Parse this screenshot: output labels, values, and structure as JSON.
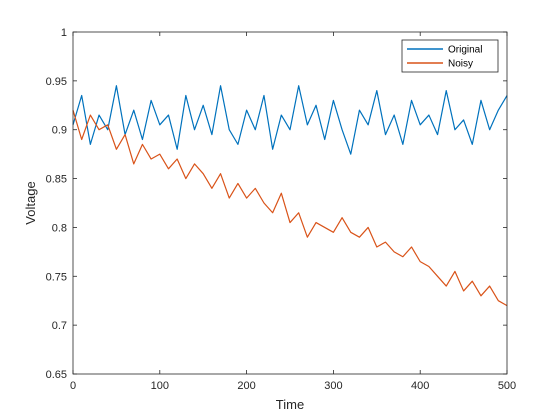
{
  "chart_data": {
    "type": "line",
    "title": "",
    "xlabel": "Time",
    "ylabel": "Voltage",
    "xlim": [
      0,
      500
    ],
    "ylim": [
      0.65,
      1.0
    ],
    "x_ticks": [
      0,
      100,
      200,
      300,
      400,
      500
    ],
    "y_ticks": [
      0.65,
      0.7,
      0.75,
      0.8,
      0.85,
      0.9,
      0.95,
      1
    ],
    "x_tick_labels": [
      "0",
      "100",
      "200",
      "300",
      "400",
      "500"
    ],
    "y_tick_labels": [
      "0.65",
      "0.7",
      "0.75",
      "0.8",
      "0.85",
      "0.9",
      "0.95",
      "1"
    ],
    "grid": false,
    "legend": {
      "position": "top-right"
    },
    "x": [
      0,
      10,
      20,
      30,
      40,
      50,
      60,
      70,
      80,
      90,
      100,
      110,
      120,
      130,
      140,
      150,
      160,
      170,
      180,
      190,
      200,
      210,
      220,
      230,
      240,
      250,
      260,
      270,
      280,
      290,
      300,
      310,
      320,
      330,
      340,
      350,
      360,
      370,
      380,
      390,
      400,
      410,
      420,
      430,
      440,
      450,
      460,
      470,
      480,
      490,
      500
    ],
    "series": [
      {
        "name": "Original",
        "color": "#0072BD",
        "values": [
          0.905,
          0.935,
          0.885,
          0.915,
          0.9,
          0.945,
          0.895,
          0.92,
          0.89,
          0.93,
          0.905,
          0.915,
          0.88,
          0.935,
          0.9,
          0.925,
          0.895,
          0.945,
          0.9,
          0.885,
          0.92,
          0.9,
          0.935,
          0.88,
          0.915,
          0.9,
          0.945,
          0.905,
          0.925,
          0.89,
          0.93,
          0.9,
          0.875,
          0.92,
          0.905,
          0.94,
          0.895,
          0.915,
          0.885,
          0.93,
          0.905,
          0.915,
          0.895,
          0.94,
          0.9,
          0.91,
          0.885,
          0.93,
          0.9,
          0.92,
          0.935
        ]
      },
      {
        "name": "Noisy",
        "color": "#D95319",
        "values": [
          0.92,
          0.89,
          0.915,
          0.9,
          0.905,
          0.88,
          0.895,
          0.865,
          0.885,
          0.87,
          0.875,
          0.86,
          0.87,
          0.85,
          0.865,
          0.855,
          0.84,
          0.855,
          0.83,
          0.845,
          0.83,
          0.84,
          0.825,
          0.815,
          0.835,
          0.805,
          0.815,
          0.79,
          0.805,
          0.8,
          0.795,
          0.81,
          0.795,
          0.79,
          0.8,
          0.78,
          0.785,
          0.775,
          0.77,
          0.78,
          0.765,
          0.76,
          0.75,
          0.74,
          0.755,
          0.735,
          0.745,
          0.73,
          0.74,
          0.725,
          0.72
        ]
      }
    ]
  }
}
